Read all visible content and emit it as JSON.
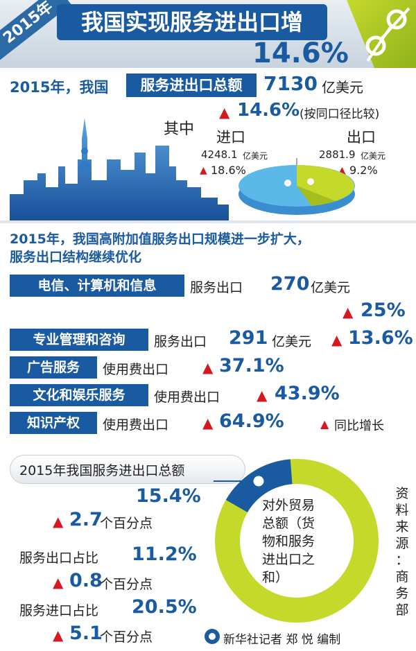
{
  "header": {
    "year_ribbon": "2015年",
    "title": "我国实现服务进出口增",
    "headline_pct": "14.6%"
  },
  "overview": {
    "line1_prefix": "2015年，我国",
    "line1_box": "服务进出口总额",
    "total_value": "7130",
    "total_unit": "亿美元",
    "total_growth": "14.6%",
    "total_note": "(按同口径比较)",
    "qizhong": "其中",
    "import_label": "进口",
    "import_value": "4248.1",
    "import_unit": "亿美元",
    "import_growth": "18.6%",
    "export_label": "出口",
    "export_value": "2881.9",
    "export_unit": "亿美元",
    "export_growth": "9.2%",
    "pie_colors": {
      "import": "#5cb8e8",
      "export": "#c4d92a"
    }
  },
  "section2": {
    "heading_line1": "2015年，我国高附加值服务出口规模进一步扩大，",
    "heading_line2": "服务出口结构继续优化",
    "rows": [
      {
        "box": "电信、计算机和信息",
        "label": "服务出口",
        "value": "270",
        "unit": "亿美元",
        "growth": "25%"
      },
      {
        "box": "专业管理和咨询",
        "label": "服务出口",
        "value": "291",
        "unit": "亿美元",
        "growth": "13.6%"
      },
      {
        "box": "广告服务",
        "label": "使用费出口",
        "growth": "37.1%"
      },
      {
        "box": "文化和娱乐服务",
        "label": "使用费出口",
        "growth": "43.9%"
      },
      {
        "box": "知识产权",
        "label": "使用费出口",
        "growth": "64.9%"
      }
    ],
    "legend": "同比增长"
  },
  "section3": {
    "heading": "2015年我国服务进出口总额",
    "share_value": "15.4%",
    "share_change": "2.7",
    "share_change_unit": "个百分点",
    "export_share_label": "服务出口占比",
    "export_share_value": "11.2%",
    "export_share_change": "0.8",
    "export_share_change_unit": "个百分点",
    "import_share_label": "服务进口占比",
    "import_share_value": "20.5%",
    "import_share_change": "5.1",
    "import_share_change_unit": "个百分点",
    "donut_center": [
      "对外贸易",
      "总额（货",
      "物和服务",
      "进出口之",
      "和）"
    ],
    "donut_colors": {
      "ring": "#c4d92a",
      "slice": "#1a5aa0"
    },
    "source_label": [
      "资",
      "料",
      "来",
      "源",
      "：",
      "商",
      "务",
      "部"
    ],
    "credit": "新华社记者 郑 悦 编制"
  }
}
